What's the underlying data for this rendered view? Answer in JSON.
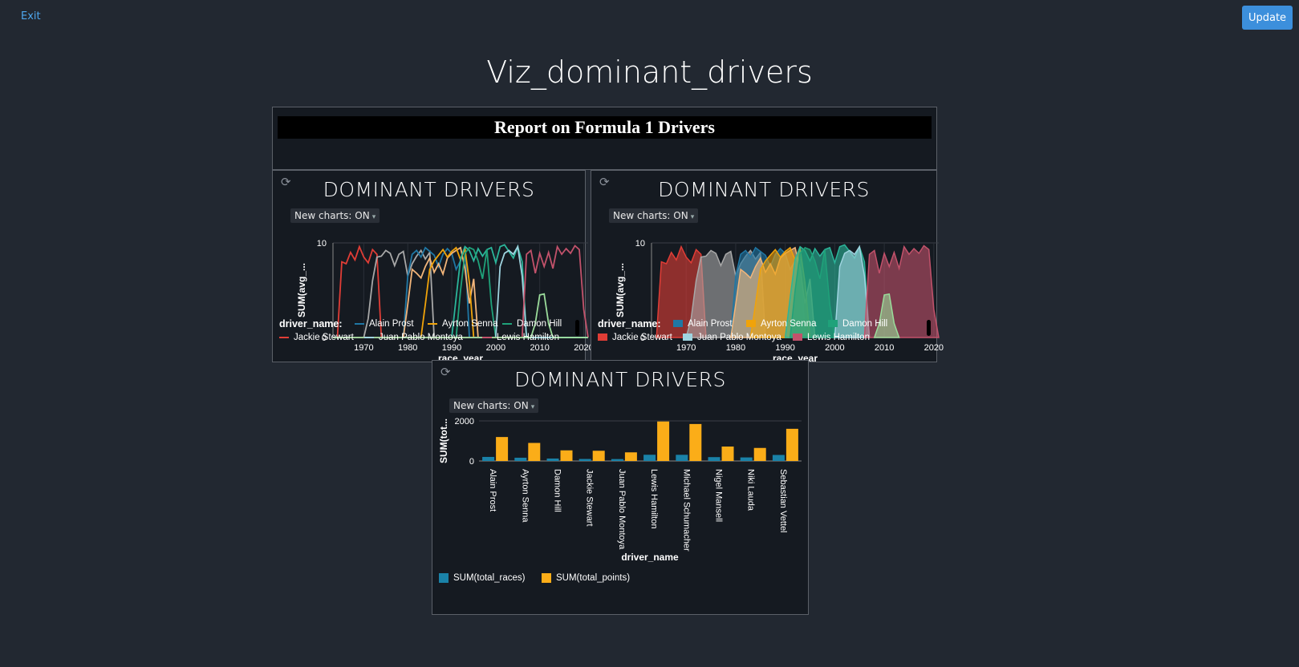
{
  "header": {
    "exit_label": "Exit",
    "update_label": "Update",
    "title": "Viz_dominant_drivers"
  },
  "report": {
    "heading": "Report on Formula 1 Drivers"
  },
  "charts": [
    {
      "title": "DOMINANT DRIVERS",
      "toggle": "New charts: ON",
      "type": "line",
      "ylabel": "SUM(avg_...",
      "xlabel": "race_year"
    },
    {
      "title": "DOMINANT DRIVERS",
      "toggle": "New charts: ON",
      "type": "area",
      "ylabel": "SUM(avg_...",
      "xlabel": "race_year"
    },
    {
      "title": "DOMINANT DRIVERS",
      "toggle": "New charts: ON",
      "type": "bar",
      "ylabel": "SUM(tot...",
      "xlabel": "driver_name"
    }
  ],
  "legend": {
    "title": "driver_name:",
    "items": [
      "Alain Prost",
      "Ayrton Senna",
      "Damon Hill",
      "Jackie Stewart",
      "Juan Pablo Montoya",
      "Lewis Hamilton"
    ],
    "bar_items": [
      "SUM(total_races)",
      "SUM(total_points)"
    ]
  },
  "colors": {
    "Alain Prost": "#1f77a4",
    "Ayrton Senna": "#f0a30a",
    "Damon Hill": "#1fa27a",
    "Jackie Stewart": "#e03d36",
    "Juan Pablo Montoya": "#9fd4e0",
    "Lewis Hamilton": "#c2526b",
    "Michael Schumacher": "#2bb59a",
    "Nigel Mansell": "#f2b57a",
    "Niki Lauda": "#a8a8a8",
    "Sebastian Vettel": "#9bdc9b",
    "races": "#1a82a8",
    "points": "#fbad18"
  },
  "chart_data": [
    {
      "type": "line",
      "xlabel": "race_year",
      "ylabel": "SUM(avg_...",
      "xlim": [
        1963,
        2021
      ],
      "ylim": [
        0,
        10
      ],
      "x_ticks": [
        1970,
        1980,
        1990,
        2000,
        2010,
        2020
      ],
      "y_ticks": [
        0,
        10
      ],
      "series": [
        {
          "name": "Jackie Stewart",
          "active": [
            1965,
            1973
          ],
          "values": [
            8,
            7.8,
            9,
            8.2,
            9.6,
            8.5,
            7.9,
            9.3,
            8.8
          ]
        },
        {
          "name": "Niki Lauda",
          "active": [
            1971,
            1985
          ],
          "values": [
            2,
            6,
            8.5,
            8.6,
            9.2,
            8.9,
            7.6,
            8.8,
            9.1,
            6.5,
            7.8,
            8.6,
            9.2,
            8.3,
            9
          ]
        },
        {
          "name": "Alain Prost",
          "active": [
            1980,
            1993
          ],
          "values": [
            6.5,
            8.8,
            9.2,
            8.5,
            9.5,
            9.1,
            8.7,
            7.5,
            8.8,
            9.4,
            8.9,
            7.2,
            8.1,
            9.6
          ]
        },
        {
          "name": "Nigel Mansell",
          "active": [
            1980,
            1995
          ],
          "values": [
            3.5,
            7.2,
            6.8,
            6.3,
            7.5,
            8.4,
            6.9,
            7.8,
            6.7,
            8.4,
            8.9,
            9.2,
            9.5,
            7.3,
            3.6,
            6.2
          ]
        },
        {
          "name": "Ayrton Senna",
          "active": [
            1984,
            1994
          ],
          "values": [
            3.5,
            7.2,
            8.1,
            8.7,
            9.3,
            8.5,
            9.1,
            9.5,
            8.2,
            9.4,
            5.8
          ]
        },
        {
          "name": "Michael Schumacher",
          "active": [
            1991,
            2006
          ],
          "values": [
            4.2,
            8.3,
            9.6,
            9.2,
            8.1,
            9.4,
            8.6,
            9.3,
            9.5,
            7.9,
            9.6,
            9.8,
            9.1,
            8.4,
            9.6,
            8
          ]
        },
        {
          "name": "Damon Hill",
          "active": [
            1992,
            1999
          ],
          "values": [
            5,
            8.9,
            9.5,
            9.3,
            8.1,
            6.2,
            9.3,
            3.5
          ]
        },
        {
          "name": "Juan Pablo Montoya",
          "active": [
            2001,
            2006
          ],
          "values": [
            7.5,
            8.9,
            9.2,
            8.8,
            9.6,
            6.5
          ]
        },
        {
          "name": "Lewis Hamilton",
          "active": [
            2007,
            2020
          ],
          "values": [
            8.8,
            9.2,
            6.8,
            8.9,
            7.5,
            9,
            7.3,
            9.6,
            8.8,
            9.4,
            8.9,
            9.7,
            9.3,
            3
          ]
        },
        {
          "name": "Sebastian Vettel",
          "active": [
            2009,
            2012
          ],
          "values": [
            1.5,
            4.5,
            4.6,
            1.5
          ]
        }
      ]
    },
    {
      "type": "area",
      "xlabel": "race_year",
      "ylabel": "SUM(avg_...",
      "xlim": [
        1963,
        2021
      ],
      "ylim": [
        0,
        10
      ],
      "x_ticks": [
        1970,
        1980,
        1990,
        2000,
        2010,
        2020
      ],
      "y_ticks": [
        0,
        10
      ],
      "same_series_as": 0
    },
    {
      "type": "bar",
      "xlabel": "driver_name",
      "ylabel": "SUM(tot...",
      "ylim": [
        0,
        2000
      ],
      "y_ticks": [
        0,
        2000
      ],
      "categories": [
        "Alain Prost",
        "Ayrton Senna",
        "Damon Hill",
        "Jackie Stewart",
        "Juan Pablo Montoya",
        "Lewis Hamilton",
        "Michael Schumacher",
        "Nigel Mansell",
        "Niki Lauda",
        "Sebastian Vettel"
      ],
      "series": [
        {
          "name": "SUM(total_races)",
          "values": [
            202,
            162,
            122,
            100,
            95,
            310,
            308,
            192,
            177,
            300
          ]
        },
        {
          "name": "SUM(total_points)",
          "values": [
            1195,
            900,
            530,
            510,
            430,
            1970,
            1845,
            720,
            650,
            1605
          ]
        }
      ]
    }
  ]
}
